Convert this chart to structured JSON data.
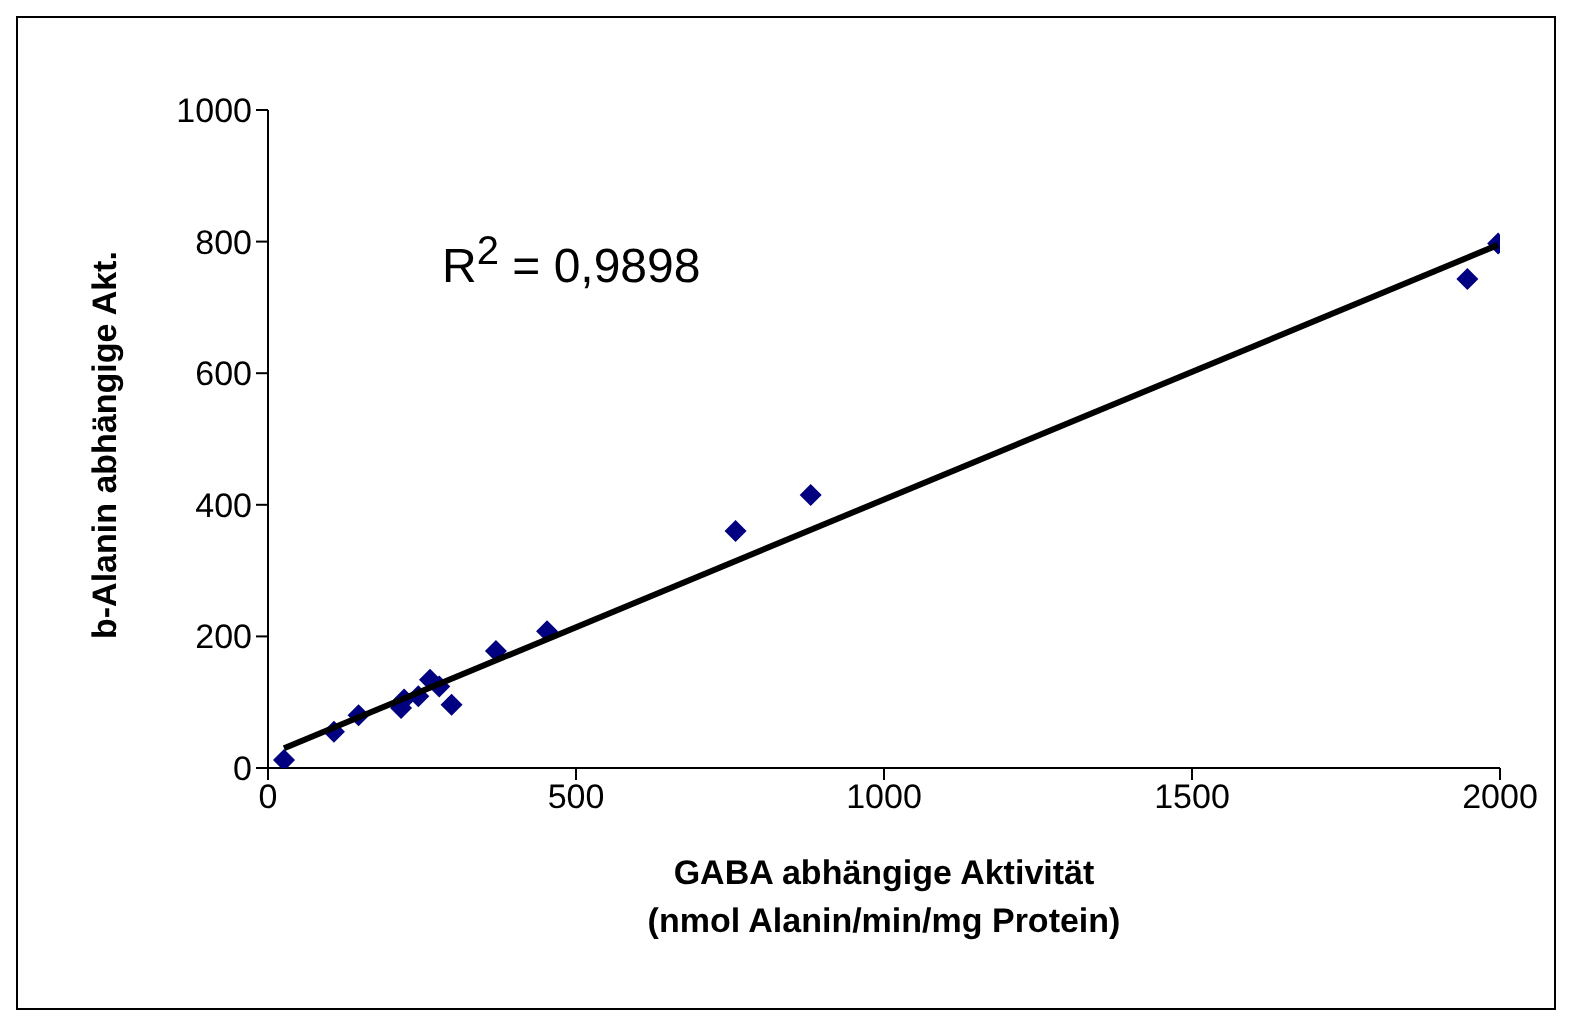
{
  "chart_data": {
    "type": "scatter",
    "xlabel": "GABA abhängige Aktivität\n(nmol Alanin/min/mg Protein)",
    "ylabel": "b-Alanin abhängige Akt.",
    "annotations": [
      "R$^{2}$ = 0,9898"
    ],
    "xlim": [
      0,
      2000
    ],
    "xticks": [
      0,
      500,
      1000,
      1500,
      2000
    ],
    "ylim": [
      0,
      1000
    ],
    "yticks": [
      0,
      200,
      400,
      600,
      800,
      1000
    ],
    "legend": false,
    "series": [
      {
        "color": "#000080",
        "marker": "diamond",
        "x": [
          26,
          107,
          147,
          216,
          221,
          244,
          263,
          278,
          298,
          370,
          453,
          759,
          881,
          1947,
          1997
        ],
        "values": [
          12,
          55,
          80,
          91,
          104,
          109,
          134,
          124,
          96,
          178,
          208,
          360,
          415,
          743,
          797
        ]
      },
      {
        "type": "line",
        "color": "#000000",
        "marker": "none",
        "line_style": "solid",
        "x": [
          26,
          1997
        ],
        "values": [
          30,
          795
        ]
      }
    ]
  }
}
